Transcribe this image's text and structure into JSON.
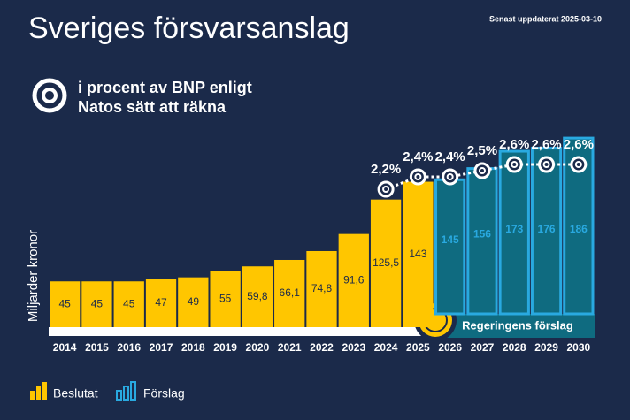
{
  "chart_data": {
    "type": "bar",
    "title": "Sveriges försvarsanslag",
    "updated": "Senast uppdaterat 2025-03-10",
    "line_legend": "i procent av BNP enligt Natos sätt att räkna",
    "y_label": "Miljarder kronor",
    "proposal_label": "Regeringens förslag",
    "categories": [
      "2014",
      "2015",
      "2016",
      "2017",
      "2018",
      "2019",
      "2020",
      "2021",
      "2022",
      "2023",
      "2024",
      "2025",
      "2026",
      "2027",
      "2028",
      "2029",
      "2030"
    ],
    "series": [
      {
        "name": "Beslutat",
        "color": "#ffc600",
        "values": [
          45,
          45,
          45,
          47,
          49,
          55,
          59.8,
          66.1,
          74.8,
          91.6,
          125.5,
          143,
          null,
          null,
          null,
          null,
          null
        ],
        "value_labels": [
          "45",
          "45",
          "45",
          "47",
          "49",
          "55",
          "59,8",
          "66,1",
          "74,8",
          "91,6",
          "125,5",
          "143",
          null,
          null,
          null,
          null,
          null
        ]
      },
      {
        "name": "Förslag",
        "color": "#29a9e0",
        "values": [
          null,
          null,
          null,
          null,
          null,
          null,
          null,
          null,
          null,
          null,
          null,
          null,
          145,
          156,
          173,
          176,
          186
        ]
      }
    ],
    "percent": {
      "values": [
        null,
        null,
        null,
        null,
        null,
        null,
        null,
        null,
        null,
        null,
        2.2,
        2.4,
        2.4,
        2.5,
        2.6,
        2.6,
        2.6
      ],
      "value_labels": [
        null,
        null,
        null,
        null,
        null,
        null,
        null,
        null,
        null,
        null,
        "2,2%",
        "2,4%",
        "2,4%",
        "2,5%",
        "2,6%",
        "2,6%",
        "2,6%"
      ]
    }
  }
}
